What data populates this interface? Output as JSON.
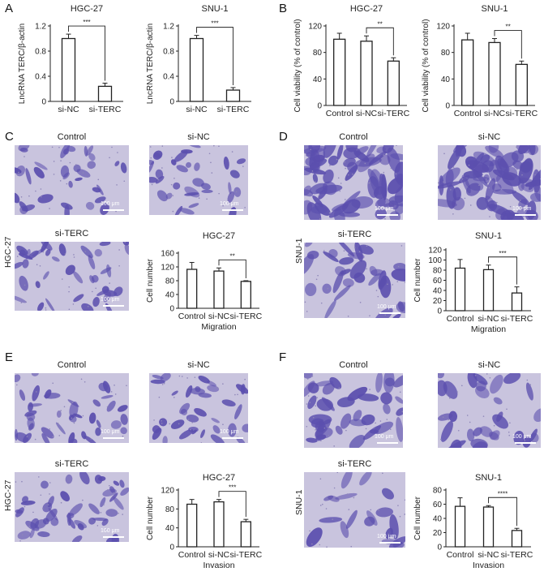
{
  "colors": {
    "stain": "#5b4fae",
    "bg_light": "#c9c4de",
    "bar_fill": "#ffffff",
    "stroke": "#222222"
  },
  "panels": {
    "A": {
      "letter": "A"
    },
    "B": {
      "letter": "B"
    },
    "C": {
      "letter": "C",
      "row_label": "HGC-27",
      "images": [
        "Control",
        "si-NC",
        "si-TERC"
      ]
    },
    "D": {
      "letter": "D",
      "row_label": "SNU-1",
      "images": [
        "Control",
        "si-NC",
        "si-TERC"
      ]
    },
    "E": {
      "letter": "E",
      "row_label": "HGC-27",
      "images": [
        "Control",
        "si-NC",
        "si-TERC"
      ]
    },
    "F": {
      "letter": "F",
      "row_label": "SNU-1",
      "images": [
        "Control",
        "si-NC",
        "si-TERC"
      ]
    }
  },
  "scale_bar_text": "100 μm",
  "chart_data": [
    {
      "id": "A1",
      "type": "bar",
      "title": "HGC-27",
      "ylabel": "LncRNA TERC/β-actin",
      "xlabel": "",
      "categories": [
        "si-NC",
        "si-TERC"
      ],
      "values": [
        1.0,
        0.24
      ],
      "errors": [
        0.07,
        0.05
      ],
      "ylim": [
        0,
        1.2
      ],
      "yticks": [
        "0",
        "0.4",
        "0.8",
        "1.2"
      ],
      "tick_values": [
        0,
        0.4,
        0.8,
        1.2
      ],
      "sig": {
        "from": 0,
        "to": 1,
        "label": "***"
      }
    },
    {
      "id": "A2",
      "type": "bar",
      "title": "SNU-1",
      "ylabel": "LncRNA TERC/β-actin",
      "xlabel": "",
      "categories": [
        "si-NC",
        "si-TERC"
      ],
      "values": [
        1.0,
        0.18
      ],
      "errors": [
        0.05,
        0.04
      ],
      "ylim": [
        0,
        1.2
      ],
      "yticks": [
        "0",
        "0.4",
        "0.8",
        "1.2"
      ],
      "tick_values": [
        0,
        0.4,
        0.8,
        1.2
      ],
      "sig": {
        "from": 0,
        "to": 1,
        "label": "***"
      }
    },
    {
      "id": "B1",
      "type": "bar",
      "title": "HGC-27",
      "ylabel": "Cell viability (% of control)",
      "xlabel": "",
      "categories": [
        "Control",
        "si-NC",
        "si-TERC"
      ],
      "values": [
        100,
        97,
        67
      ],
      "errors": [
        9,
        8,
        5
      ],
      "ylim": [
        0,
        120
      ],
      "yticks": [
        "0",
        "40",
        "80",
        "120"
      ],
      "tick_values": [
        0,
        40,
        80,
        120
      ],
      "sig": {
        "from": 1,
        "to": 2,
        "label": "**"
      }
    },
    {
      "id": "B2",
      "type": "bar",
      "title": "SNU-1",
      "ylabel": "Cell viability (% of control)",
      "xlabel": "",
      "categories": [
        "Control",
        "si-NC",
        "si-TERC"
      ],
      "values": [
        99,
        95,
        62
      ],
      "errors": [
        10,
        6,
        5
      ],
      "ylim": [
        0,
        120
      ],
      "yticks": [
        "0",
        "40",
        "80",
        "120"
      ],
      "tick_values": [
        0,
        40,
        80,
        120
      ],
      "sig": {
        "from": 1,
        "to": 2,
        "label": "**"
      }
    },
    {
      "id": "C",
      "type": "bar",
      "title": "HGC-27",
      "ylabel": "Cell number",
      "xlabel": "Migration",
      "categories": [
        "Control",
        "si-NC",
        "si-TERC"
      ],
      "values": [
        113,
        108,
        78
      ],
      "errors": [
        20,
        9,
        2
      ],
      "ylim": [
        0,
        160
      ],
      "yticks": [
        "0",
        "40",
        "80",
        "120",
        "160"
      ],
      "tick_values": [
        0,
        40,
        80,
        120,
        160
      ],
      "sig": {
        "from": 1,
        "to": 2,
        "label": "**"
      }
    },
    {
      "id": "D",
      "type": "bar",
      "title": "SNU-1",
      "ylabel": "Cell number",
      "xlabel": "Migration",
      "categories": [
        "Control",
        "si-NC",
        "si-TERC"
      ],
      "values": [
        84,
        81,
        35
      ],
      "errors": [
        17,
        9,
        12
      ],
      "ylim": [
        0,
        120
      ],
      "yticks": [
        "0",
        "20",
        "40",
        "60",
        "80",
        "100",
        "120"
      ],
      "tick_values": [
        0,
        20,
        40,
        60,
        80,
        100,
        120
      ],
      "sig": {
        "from": 1,
        "to": 2,
        "label": "***"
      }
    },
    {
      "id": "E",
      "type": "bar",
      "title": "HGC-27",
      "ylabel": "Cell number",
      "xlabel": "Invasion",
      "categories": [
        "Control",
        "si-NC",
        "si-TERC"
      ],
      "values": [
        90,
        95,
        53
      ],
      "errors": [
        10,
        5,
        5
      ],
      "ylim": [
        0,
        120
      ],
      "yticks": [
        "0",
        "40",
        "80",
        "120"
      ],
      "tick_values": [
        0,
        40,
        80,
        120
      ],
      "sig": {
        "from": 1,
        "to": 2,
        "label": "***"
      }
    },
    {
      "id": "F",
      "type": "bar",
      "title": "SNU-1",
      "ylabel": "Cell number",
      "xlabel": "Invasion",
      "categories": [
        "Control",
        "si-NC",
        "si-TERC"
      ],
      "values": [
        57,
        56,
        23
      ],
      "errors": [
        12,
        2,
        3
      ],
      "ylim": [
        0,
        80
      ],
      "yticks": [
        "0",
        "20",
        "40",
        "60",
        "80"
      ],
      "tick_values": [
        0,
        20,
        40,
        60,
        80
      ],
      "sig": {
        "from": 1,
        "to": 2,
        "label": "****"
      }
    }
  ]
}
